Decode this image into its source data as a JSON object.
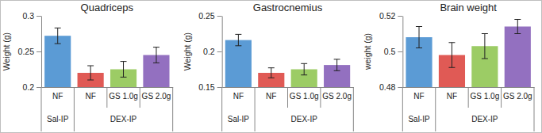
{
  "chart_data": [
    {
      "type": "bar",
      "title": "Quadriceps",
      "y_label": "Weight (g)",
      "categories": [
        "NF",
        "NF",
        "GS 1.0g",
        "GS 2.0g"
      ],
      "groups": [
        {
          "name": "Sal-IP",
          "size": 1
        },
        {
          "name": "DEX-IP",
          "size": 3
        }
      ],
      "values": [
        0.272,
        0.22,
        0.225,
        0.245
      ],
      "errors": [
        0.011,
        0.01,
        0.011,
        0.011
      ],
      "colors": [
        "#5b9bd5",
        "#e05a55",
        "#9ccc65",
        "#9370c0"
      ],
      "ylim": [
        0.2,
        0.3
      ],
      "yticks": [
        0.2,
        0.25,
        0.3
      ]
    },
    {
      "type": "bar",
      "title": "Gastrocnemius",
      "y_label": "Weight (g)",
      "categories": [
        "NF",
        "NF",
        "GS 1.0g",
        "GS 2.0g"
      ],
      "groups": [
        {
          "name": "Sal-IP",
          "size": 1
        },
        {
          "name": "DEX-IP",
          "size": 3
        }
      ],
      "values": [
        0.216,
        0.17,
        0.175,
        0.181
      ],
      "errors": [
        0.008,
        0.007,
        0.008,
        0.008
      ],
      "colors": [
        "#5b9bd5",
        "#e05a55",
        "#9ccc65",
        "#9370c0"
      ],
      "ylim": [
        0.15,
        0.25
      ],
      "yticks": [
        0.15,
        0.2,
        0.25
      ]
    },
    {
      "type": "bar",
      "title": "Brain weight",
      "y_label": "weight (g)",
      "categories": [
        "NF",
        "NF",
        "GS 1.0g",
        "GS 2.0g"
      ],
      "groups": [
        {
          "name": "Sal-IP",
          "size": 1
        },
        {
          "name": "DEX-IP",
          "size": 3
        }
      ],
      "values": [
        0.508,
        0.498,
        0.503,
        0.514
      ],
      "errors": [
        0.006,
        0.007,
        0.007,
        0.004
      ],
      "colors": [
        "#5b9bd5",
        "#e05a55",
        "#9ccc65",
        "#9370c0"
      ],
      "ylim": [
        0.48,
        0.52
      ],
      "yticks": [
        0.48,
        0.5,
        0.52
      ]
    }
  ]
}
